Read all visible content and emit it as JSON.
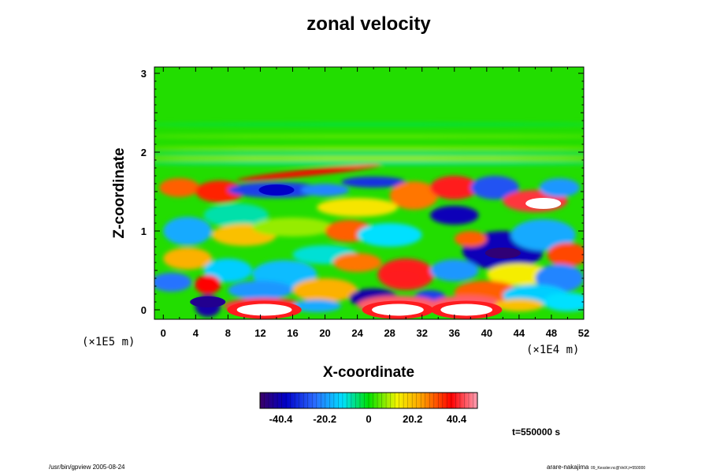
{
  "chart_data": {
    "type": "heatmap",
    "title": "zonal velocity",
    "xlabel": "X-coordinate",
    "ylabel": "Z-coordinate",
    "xlim": [
      -1.1,
      52
    ],
    "ylim": [
      -0.12,
      3.08
    ],
    "x_ticks": [
      "0",
      "4",
      "8",
      "12",
      "16",
      "20",
      "24",
      "28",
      "32",
      "36",
      "40",
      "44",
      "48",
      "52"
    ],
    "y_ticks": [
      "0",
      "1",
      "2",
      "3"
    ],
    "x_scale_label": "(×1E4 m)",
    "y_scale_label": "(×1E5 m)",
    "colorbar": {
      "range": [
        -50,
        50
      ],
      "ticks": [
        "-40.4",
        "-20.2",
        "0",
        "20.2",
        "40.4"
      ]
    },
    "time_label": "t=550000 s",
    "features": [
      {
        "x": 12.5,
        "z": 0.0,
        "value": 55,
        "desc": "strong positive core near surface"
      },
      {
        "x": 29.0,
        "z": 0.0,
        "value": 60,
        "desc": "strong positive core (saturated)"
      },
      {
        "x": 37.5,
        "z": 0.0,
        "value": 60,
        "desc": "strong positive core (saturated)"
      },
      {
        "x": 5.5,
        "z": 0.1,
        "value": -45,
        "desc": "negative surface cell"
      },
      {
        "x": 42.0,
        "z": 0.72,
        "value": -48,
        "desc": "negative mid-level cell"
      },
      {
        "x": 47.0,
        "z": 1.35,
        "value": 52,
        "desc": "positive cell upper level"
      },
      {
        "x": 14.0,
        "z": 1.52,
        "value": -38,
        "desc": "negative band near tropopause"
      },
      {
        "x": 29.5,
        "z": 0.42,
        "value": 40,
        "desc": "positive mid-level cell"
      }
    ]
  },
  "footer": {
    "left": "/usr/bin/gpview 2005-08-24",
    "right_main": "arare-nakajima",
    "right_sub": "09_Kessler.nc@VelX,t=550000"
  }
}
